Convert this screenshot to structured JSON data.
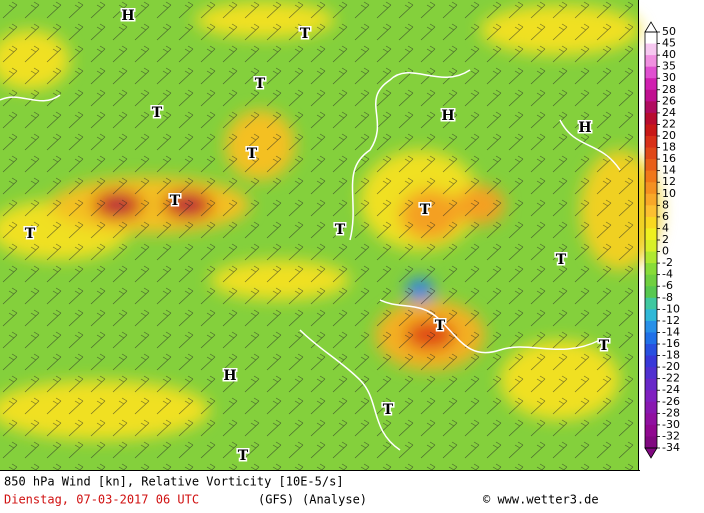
{
  "map": {
    "pressure_labels": [
      "H",
      "T",
      "T",
      "T",
      "H",
      "H",
      "T",
      "T",
      "T",
      "T",
      "T",
      "T",
      "T",
      "T",
      "H",
      "T",
      "T"
    ]
  },
  "colorbar": {
    "ticks": [
      50,
      45,
      40,
      35,
      30,
      28,
      26,
      24,
      22,
      20,
      18,
      16,
      14,
      12,
      10,
      8,
      6,
      4,
      2,
      0,
      -2,
      -4,
      -6,
      -8,
      -10,
      -12,
      -14,
      -16,
      -18,
      -20,
      -22,
      -24,
      -26,
      -28,
      -30,
      -32,
      -34
    ],
    "colors": [
      "#ffffff",
      "#f6c8f0",
      "#f090e0",
      "#e050d0",
      "#d020b0",
      "#c01090",
      "#b00c60",
      "#b80c30",
      "#c81818",
      "#d83018",
      "#e04818",
      "#e86018",
      "#f07818",
      "#f49020",
      "#f8a828",
      "#fcc030",
      "#f8d820",
      "#f0f020",
      "#d8f028",
      "#b0e830",
      "#88dc38",
      "#70d040",
      "#58c850",
      "#40c8a0",
      "#30b8d8",
      "#2890e8",
      "#2070e8",
      "#2850e0",
      "#3838d8",
      "#5030d0",
      "#6828c8",
      "#8020c0",
      "#8818b0",
      "#9010a0",
      "#900890",
      "#800880"
    ]
  },
  "footer": {
    "title": "850 hPa Wind [kn], Relative Vorticity [10E-5/s]",
    "date": "Dienstag, 07-03-2017  06 UTC",
    "model": "(GFS)",
    "run": "(Analyse)",
    "credit": "© www.wetter3.de"
  }
}
